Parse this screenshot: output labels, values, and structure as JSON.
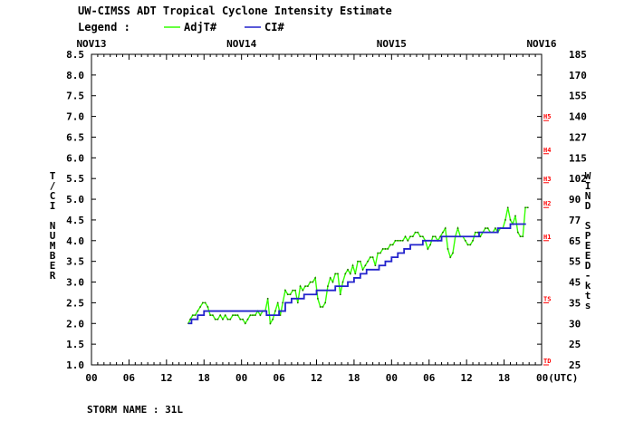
{
  "title": "UW-CIMSS ADT Tropical Cyclone Intensity Estimate",
  "legend": {
    "label": "Legend :",
    "items": [
      "AdjT#",
      "CI#"
    ]
  },
  "storm_label": "STORM NAME : 31L",
  "colors": {
    "adjt": "#33ff00",
    "ci": "#2222cc",
    "grid_red": "#ff0000",
    "axis": "#000000"
  },
  "chart_data": {
    "type": "line",
    "title": "UW-CIMSS ADT Tropical Cyclone Intensity Estimate",
    "xlabel": "(UTC)",
    "ylabel": "T/CI NUMBER",
    "y2label": "WIND SPEED-kts",
    "date_labels": [
      "NOV13",
      "NOV14",
      "NOV15",
      "NOV16"
    ],
    "x_tick_labels": [
      "00",
      "06",
      "12",
      "18",
      "00",
      "06",
      "12",
      "18",
      "00",
      "06",
      "12",
      "18",
      "00(UTC)"
    ],
    "y_tick_labels": [
      "1.0",
      "1.5",
      "2.0",
      "2.5",
      "3.0",
      "3.5",
      "4.0",
      "4.5",
      "5.0",
      "5.5",
      "6.0",
      "6.5",
      "7.0",
      "7.5",
      "8.0",
      "8.5"
    ],
    "y2_tick_labels": [
      "25",
      "25",
      "30",
      "35",
      "45",
      "55",
      "65",
      "77",
      "90",
      "102",
      "115",
      "127",
      "140",
      "155",
      "170",
      "185"
    ],
    "category_labels": [
      "TD",
      "TS",
      "H1",
      "H2",
      "H3",
      "H4",
      "H5"
    ],
    "category_values": [
      1.0,
      2.5,
      4.0,
      4.8,
      5.4,
      6.1,
      6.9
    ],
    "ylim": [
      1.0,
      8.5
    ],
    "xlim_hours": [
      0,
      72
    ],
    "grid": false,
    "legend_position": "top-left",
    "series": [
      {
        "name": "AdjT#",
        "x_hours": [
          15.5,
          15.8,
          16.2,
          16.6,
          17.0,
          17.4,
          17.8,
          18.2,
          18.6,
          19.0,
          19.4,
          19.8,
          20.2,
          20.6,
          21.0,
          21.4,
          21.8,
          22.2,
          22.6,
          23.0,
          23.4,
          23.8,
          24.2,
          24.6,
          25.0,
          25.4,
          25.8,
          26.2,
          26.6,
          27.0,
          27.4,
          27.8,
          28.2,
          28.6,
          29.0,
          29.4,
          29.8,
          30.2,
          30.6,
          31.0,
          31.4,
          31.8,
          32.2,
          32.6,
          33.0,
          33.4,
          33.8,
          34.2,
          34.6,
          35.0,
          35.4,
          35.8,
          36.2,
          36.6,
          37.0,
          37.4,
          37.8,
          38.2,
          38.6,
          39.0,
          39.4,
          39.8,
          40.2,
          40.6,
          41.0,
          41.4,
          41.8,
          42.2,
          42.6,
          43.0,
          43.4,
          43.8,
          44.2,
          44.6,
          45.0,
          45.4,
          45.8,
          46.2,
          46.6,
          47.0,
          47.4,
          47.8,
          48.2,
          48.6,
          49.0,
          49.4,
          49.8,
          50.2,
          50.6,
          51.0,
          51.4,
          51.8,
          52.2,
          52.6,
          53.0,
          53.4,
          53.8,
          54.2,
          54.6,
          55.0,
          55.4,
          55.8,
          56.2,
          56.6,
          57.0,
          57.4,
          57.8,
          58.2,
          58.6,
          59.0,
          59.4,
          59.8,
          60.2,
          60.6,
          61.0,
          61.4,
          61.8,
          62.2,
          62.6,
          63.0,
          63.4,
          63.8,
          64.2,
          64.6,
          65.0,
          65.4,
          65.8,
          66.2,
          66.6,
          67.0,
          67.4,
          67.8,
          68.2,
          68.6,
          69.0,
          69.4,
          69.8
        ],
        "values": [
          2.0,
          2.1,
          2.2,
          2.2,
          2.3,
          2.4,
          2.5,
          2.5,
          2.4,
          2.2,
          2.2,
          2.1,
          2.1,
          2.2,
          2.1,
          2.2,
          2.1,
          2.1,
          2.2,
          2.2,
          2.2,
          2.1,
          2.1,
          2.0,
          2.1,
          2.2,
          2.2,
          2.2,
          2.3,
          2.2,
          2.3,
          2.3,
          2.6,
          2.0,
          2.1,
          2.3,
          2.5,
          2.2,
          2.5,
          2.8,
          2.7,
          2.7,
          2.8,
          2.8,
          2.5,
          2.9,
          2.8,
          2.9,
          2.9,
          3.0,
          3.0,
          3.1,
          2.6,
          2.4,
          2.4,
          2.5,
          2.9,
          3.1,
          3.0,
          3.2,
          3.2,
          2.7,
          3.0,
          3.2,
          3.3,
          3.2,
          3.4,
          3.2,
          3.5,
          3.5,
          3.3,
          3.4,
          3.5,
          3.6,
          3.6,
          3.4,
          3.7,
          3.7,
          3.8,
          3.8,
          3.8,
          3.9,
          3.9,
          4.0,
          4.0,
          4.0,
          4.0,
          4.1,
          4.0,
          4.1,
          4.1,
          4.2,
          4.2,
          4.1,
          4.1,
          4.0,
          3.8,
          3.9,
          4.1,
          4.1,
          4.0,
          4.1,
          4.2,
          4.3,
          3.8,
          3.6,
          3.7,
          4.1,
          4.3,
          4.1,
          4.1,
          4.0,
          3.9,
          3.9,
          4.0,
          4.2,
          4.2,
          4.1,
          4.2,
          4.3,
          4.3,
          4.2,
          4.2,
          4.3,
          4.2,
          4.3,
          4.3,
          4.5,
          4.8,
          4.5,
          4.4,
          4.6,
          4.2,
          4.1,
          4.1,
          4.8,
          4.8
        ]
      },
      {
        "name": "CI#",
        "x_hours": [
          15.5,
          16.0,
          16.5,
          17.0,
          17.5,
          18.0,
          18.5,
          19.0,
          20.0,
          22.0,
          24.0,
          26.0,
          28.0,
          29.0,
          30.0,
          31.0,
          32.0,
          33.0,
          34.0,
          35.0,
          36.0,
          37.0,
          38.0,
          39.0,
          40.0,
          41.0,
          42.0,
          43.0,
          44.0,
          45.0,
          46.0,
          47.0,
          48.0,
          49.0,
          50.0,
          51.0,
          52.0,
          53.0,
          54.0,
          55.0,
          56.0,
          57.0,
          58.0,
          59.0,
          60.0,
          61.0,
          62.0,
          63.0,
          64.0,
          65.0,
          66.0,
          67.0,
          68.0,
          69.5
        ],
        "values": [
          2.0,
          2.1,
          2.1,
          2.2,
          2.2,
          2.3,
          2.3,
          2.3,
          2.3,
          2.3,
          2.3,
          2.3,
          2.2,
          2.2,
          2.3,
          2.5,
          2.6,
          2.6,
          2.7,
          2.7,
          2.8,
          2.8,
          2.8,
          2.9,
          2.9,
          3.0,
          3.1,
          3.2,
          3.3,
          3.3,
          3.4,
          3.5,
          3.6,
          3.7,
          3.8,
          3.9,
          3.9,
          4.0,
          4.0,
          4.0,
          4.1,
          4.1,
          4.1,
          4.1,
          4.1,
          4.1,
          4.2,
          4.2,
          4.2,
          4.3,
          4.3,
          4.4,
          4.4,
          4.4
        ]
      }
    ]
  }
}
